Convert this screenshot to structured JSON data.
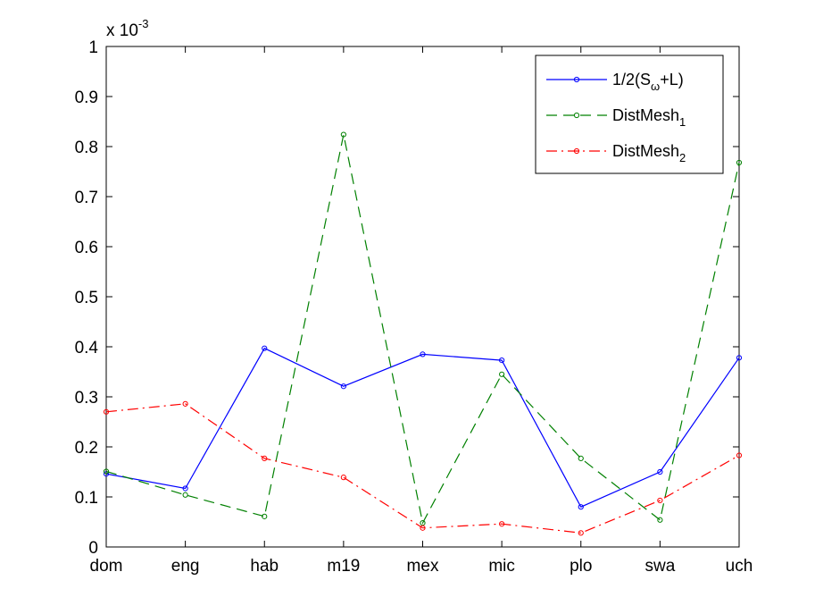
{
  "chart_data": {
    "type": "line",
    "categories": [
      "dom",
      "eng",
      "hab",
      "m19",
      "mex",
      "mic",
      "plo",
      "swa",
      "uch"
    ],
    "y_ticks": [
      "0",
      "0.1",
      "0.2",
      "0.3",
      "0.4",
      "0.5",
      "0.6",
      "0.7",
      "0.8",
      "0.9",
      "1"
    ],
    "ylim": [
      0,
      1
    ],
    "y_multiplier": {
      "base": "x 10",
      "exponent": "-3"
    },
    "grid": false,
    "legend_position": "top-right",
    "series": [
      {
        "name": "1/2(S_ω+L)",
        "legend": {
          "prefix": "1/2(S",
          "sub": "ω",
          "suffix": "+L)"
        },
        "color": "#0000ff",
        "line_style": "solid",
        "values": [
          0.146,
          0.117,
          0.397,
          0.321,
          0.385,
          0.373,
          0.08,
          0.15,
          0.378
        ]
      },
      {
        "name": "DistMesh_1",
        "legend": {
          "prefix": "DistMesh",
          "sub": "1",
          "suffix": ""
        },
        "color": "#008000",
        "line_style": "dashed",
        "values": [
          0.151,
          0.104,
          0.061,
          0.824,
          0.048,
          0.345,
          0.177,
          0.054,
          0.768
        ]
      },
      {
        "name": "DistMesh_2",
        "legend": {
          "prefix": "DistMesh",
          "sub": "2",
          "suffix": ""
        },
        "color": "#ff0000",
        "line_style": "dashdot",
        "values": [
          0.27,
          0.286,
          0.177,
          0.139,
          0.038,
          0.046,
          0.028,
          0.093,
          0.183
        ]
      }
    ]
  }
}
